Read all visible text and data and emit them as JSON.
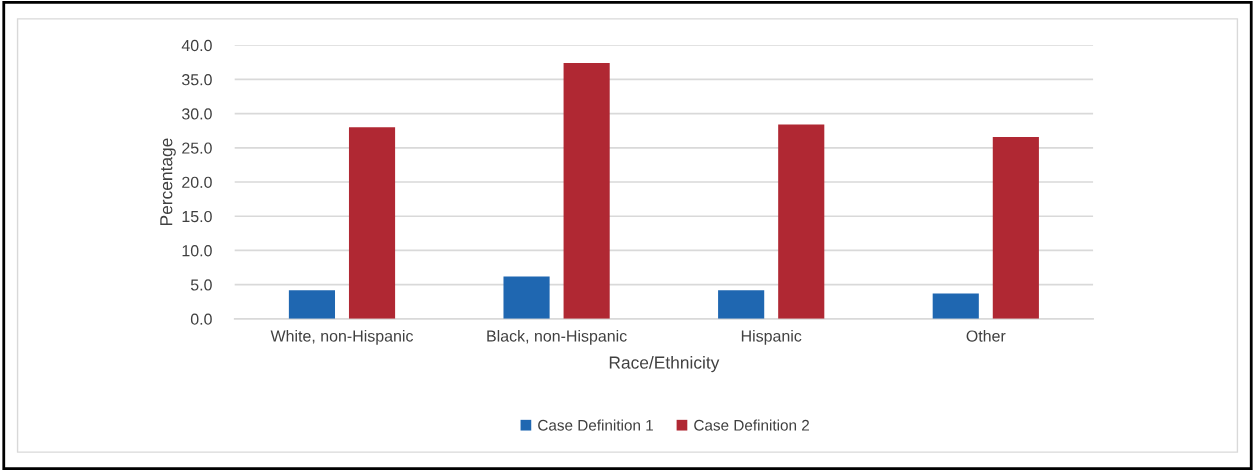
{
  "chart_data": {
    "type": "bar",
    "xlabel": "Race/Ethnicity",
    "ylabel": "Percentage",
    "categories": [
      "White, non-Hispanic",
      "Black, non-Hispanic",
      "Hispanic",
      "Other"
    ],
    "series": [
      {
        "name": "Case Definition 1",
        "color": "#1f67b1",
        "values": [
          4.2,
          6.2,
          4.2,
          3.7
        ]
      },
      {
        "name": "Case Definition 2",
        "color": "#b02833",
        "values": [
          28.0,
          37.4,
          28.4,
          26.6
        ]
      }
    ],
    "ylim": [
      0,
      40
    ],
    "yticks": [
      {
        "value": 0,
        "label": "0.0"
      },
      {
        "value": 5,
        "label": "5.0"
      },
      {
        "value": 10,
        "label": "10.0"
      },
      {
        "value": 15,
        "label": "15.0"
      },
      {
        "value": 20,
        "label": "20.0"
      },
      {
        "value": 25,
        "label": "25.0"
      },
      {
        "value": 30,
        "label": "30.0"
      },
      {
        "value": 35,
        "label": "35.0"
      },
      {
        "value": 40,
        "label": "40.0"
      }
    ],
    "grid": "y",
    "legend": "bottom"
  }
}
